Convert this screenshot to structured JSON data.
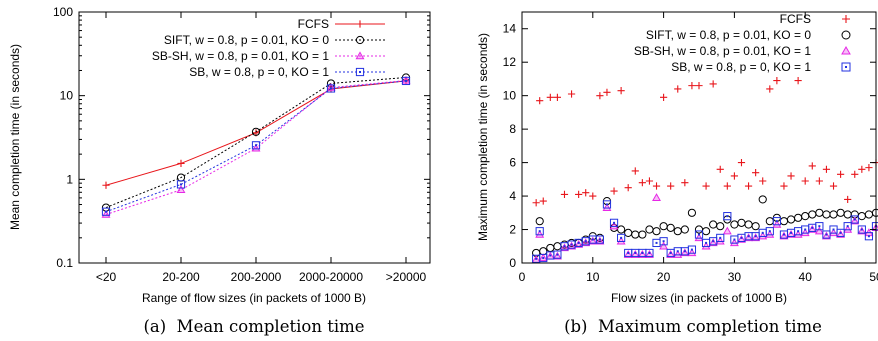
{
  "chart_data": [
    {
      "type": "line",
      "caption": "(a)  Mean completion time",
      "xlabel": "Range of flow sizes (in packets of 1000 B)",
      "ylabel": "Mean completion time (in seconds)",
      "yscale": "log",
      "ylim": [
        0.1,
        100
      ],
      "yticks": [
        "0.1",
        "1",
        "10",
        "100"
      ],
      "categories": [
        "<20",
        "20-200",
        "200-2000",
        "2000-20000",
        ">20000"
      ],
      "legend_position": "top-left",
      "grid": false,
      "series": [
        {
          "name": "FCFS",
          "color": "#e8161b",
          "marker": "plus",
          "dash": "solid",
          "values": [
            0.85,
            1.55,
            3.6,
            12.0,
            15.0
          ]
        },
        {
          "name": "SIFT, w = 0.8, p = 0.01, KO = 0",
          "color": "#000000",
          "marker": "circle",
          "dash": "dot",
          "values": [
            0.46,
            1.05,
            3.7,
            14.0,
            16.5
          ]
        },
        {
          "name": "SB-SH, w = 0.8, p = 0.01, KO = 1",
          "color": "#e628e6",
          "marker": "triangle",
          "dash": "dot",
          "values": [
            0.38,
            0.75,
            2.35,
            12.5,
            15.2
          ]
        },
        {
          "name": "SB, w = 0.8, p = 0, KO = 1",
          "color": "#2332e0",
          "marker": "square",
          "dash": "dot",
          "values": [
            0.41,
            0.87,
            2.55,
            12.2,
            15.0
          ]
        }
      ]
    },
    {
      "type": "scatter",
      "caption": "(b)  Maximum completion time",
      "xlabel": "Flow sizes (in packets of 1000 B)",
      "ylabel": "Maximum completion time (in seconds)",
      "xlim": [
        0,
        50
      ],
      "ylim": [
        0,
        15
      ],
      "xticks": [
        "0",
        "10",
        "20",
        "30",
        "40",
        "50"
      ],
      "yticks": [
        "0",
        "2",
        "4",
        "6",
        "8",
        "10",
        "12",
        "14"
      ],
      "legend_position": "top-right",
      "grid": false,
      "series": [
        {
          "name": "FCFS",
          "color": "#e8161b",
          "marker": "plus",
          "x": [
            2,
            2.5,
            3,
            4,
            5,
            6,
            7,
            8,
            9,
            10,
            11,
            12,
            13,
            14,
            15,
            16,
            17,
            18,
            19,
            20,
            21,
            22,
            23,
            24,
            25,
            26,
            27,
            28,
            29,
            30,
            31,
            32,
            33,
            34,
            35,
            36,
            37,
            38,
            39,
            40,
            41,
            42,
            43,
            44,
            45,
            46,
            47,
            48,
            49,
            50
          ],
          "y": [
            3.6,
            9.7,
            3.7,
            9.9,
            9.9,
            4.1,
            10.1,
            4.1,
            4.2,
            4.0,
            10.0,
            10.2,
            4.3,
            10.3,
            4.5,
            5.5,
            4.8,
            4.9,
            4.6,
            9.9,
            4.6,
            10.4,
            4.8,
            10.6,
            10.6,
            4.6,
            10.7,
            5.6,
            4.6,
            5.2,
            6.0,
            4.6,
            5.4,
            4.9,
            10.4,
            10.9,
            4.6,
            5.2,
            10.9,
            4.9,
            5.8,
            4.9,
            5.6,
            4.6,
            5.3,
            3.8,
            5.3,
            5.6,
            5.7,
            6.0
          ]
        },
        {
          "name": "SIFT, w = 0.8, p = 0.01, KO = 0",
          "color": "#000000",
          "marker": "circle",
          "x": [
            2,
            2.5,
            3,
            4,
            5,
            6,
            7,
            8,
            9,
            10,
            11,
            12,
            13,
            14,
            15,
            16,
            17,
            18,
            19,
            20,
            21,
            22,
            23,
            24,
            25,
            26,
            27,
            28,
            29,
            30,
            31,
            32,
            33,
            34,
            35,
            36,
            37,
            38,
            39,
            40,
            41,
            42,
            43,
            44,
            45,
            46,
            47,
            48,
            49,
            50
          ],
          "y": [
            0.6,
            2.5,
            0.7,
            0.9,
            1.0,
            1.1,
            1.2,
            1.2,
            1.4,
            1.6,
            1.5,
            3.7,
            2.1,
            2.0,
            1.8,
            1.7,
            1.7,
            2.0,
            1.9,
            2.2,
            2.1,
            1.9,
            2.0,
            3.0,
            2.0,
            1.9,
            2.3,
            2.2,
            2.6,
            2.3,
            2.4,
            2.3,
            2.2,
            3.8,
            2.5,
            2.7,
            2.5,
            2.6,
            2.7,
            2.8,
            2.9,
            3.0,
            2.9,
            2.9,
            3.0,
            2.9,
            2.9,
            2.8,
            2.9,
            3.0
          ]
        },
        {
          "name": "SB-SH, w = 0.8, p = 0.01, KO = 1",
          "color": "#e628e6",
          "marker": "triangle",
          "x": [
            2,
            2.5,
            3,
            4,
            5,
            6,
            7,
            8,
            9,
            10,
            11,
            12,
            13,
            14,
            15,
            16,
            17,
            18,
            19,
            20,
            21,
            22,
            23,
            24,
            25,
            26,
            27,
            28,
            29,
            30,
            31,
            32,
            33,
            34,
            35,
            36,
            37,
            38,
            39,
            40,
            41,
            42,
            43,
            44,
            45,
            46,
            47,
            48,
            49,
            50
          ],
          "y": [
            0.2,
            1.7,
            0.3,
            0.4,
            0.4,
            0.9,
            1.0,
            1.1,
            1.2,
            1.3,
            1.3,
            3.3,
            2.2,
            1.3,
            0.5,
            0.5,
            0.5,
            0.5,
            3.9,
            1.0,
            0.5,
            0.5,
            0.6,
            0.6,
            1.5,
            1.0,
            1.2,
            1.3,
            1.9,
            1.2,
            1.4,
            1.5,
            1.5,
            1.6,
            1.7,
            2.3,
            1.6,
            1.7,
            1.7,
            1.8,
            2.0,
            1.9,
            1.6,
            1.8,
            1.7,
            2.0,
            2.5,
            1.9,
            1.8,
            2.1
          ]
        },
        {
          "name": "SB, w = 0.8, p = 0, KO = 1",
          "color": "#2332e0",
          "marker": "square",
          "x": [
            2,
            2.5,
            3,
            4,
            5,
            6,
            7,
            8,
            9,
            10,
            11,
            12,
            13,
            14,
            15,
            16,
            17,
            18,
            19,
            20,
            21,
            22,
            23,
            24,
            25,
            26,
            27,
            28,
            29,
            30,
            31,
            32,
            33,
            34,
            35,
            36,
            37,
            38,
            39,
            40,
            41,
            42,
            43,
            44,
            45,
            46,
            47,
            48,
            49,
            50
          ],
          "y": [
            0.25,
            1.9,
            0.3,
            0.45,
            0.5,
            1.0,
            1.1,
            1.2,
            1.3,
            1.4,
            1.4,
            3.5,
            2.4,
            1.5,
            0.6,
            0.6,
            0.6,
            0.6,
            1.2,
            1.3,
            0.6,
            0.7,
            0.7,
            0.8,
            1.7,
            1.2,
            1.3,
            1.5,
            2.8,
            1.4,
            1.5,
            1.6,
            1.6,
            1.8,
            1.9,
            2.5,
            1.7,
            1.8,
            1.9,
            2.0,
            2.1,
            2.2,
            1.7,
            2.0,
            1.8,
            2.2,
            2.6,
            2.0,
            1.6,
            2.2
          ]
        }
      ]
    }
  ]
}
